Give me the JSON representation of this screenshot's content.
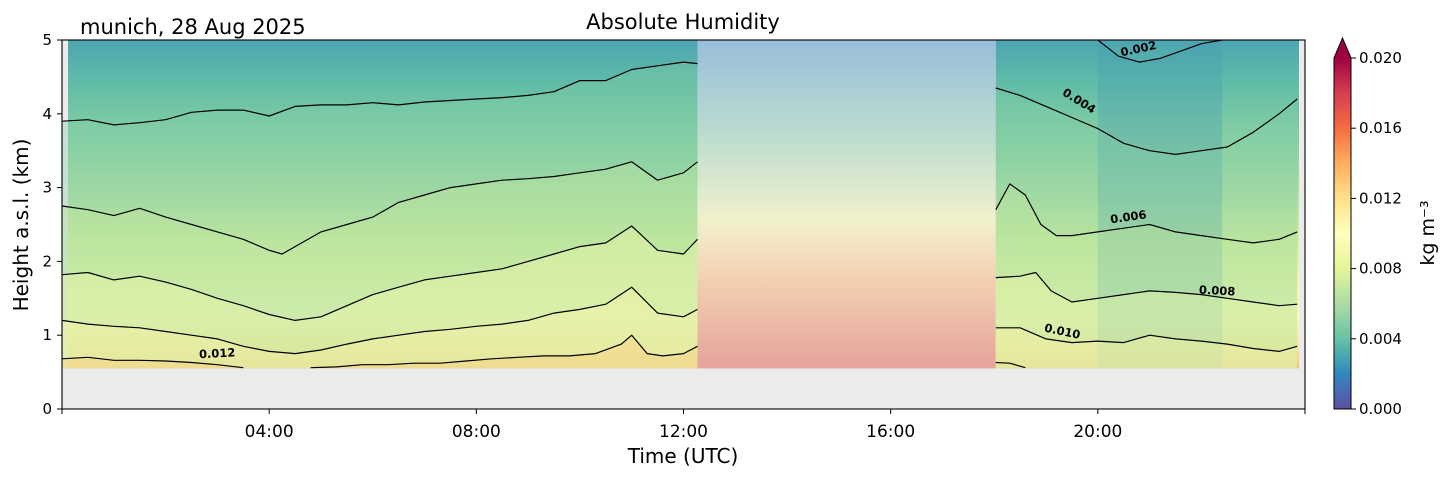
{
  "chart_data": {
    "type": "heatmap",
    "location_date": "munich, 28 Aug 2025",
    "title": "Absolute Humidity",
    "xlabel": "Time (UTC)",
    "ylabel": "Height a.s.l. (km)",
    "xlim_hours": [
      0,
      24
    ],
    "ylim_km": [
      0,
      5
    ],
    "x_ticks": [
      {
        "h": 4,
        "label": "04:00"
      },
      {
        "h": 8,
        "label": "08:00"
      },
      {
        "h": 12,
        "label": "12:00"
      },
      {
        "h": 16,
        "label": "16:00"
      },
      {
        "h": 20,
        "label": "20:00"
      }
    ],
    "y_ticks": [
      {
        "v": 0,
        "label": "0"
      },
      {
        "v": 1,
        "label": "1"
      },
      {
        "v": 2,
        "label": "2"
      },
      {
        "v": 3,
        "label": "3"
      },
      {
        "v": 4,
        "label": "4"
      },
      {
        "v": 5,
        "label": "5"
      }
    ],
    "data_bottom_km": 0.55,
    "masked_interval_hours": [
      12.27,
      18.03
    ],
    "colorbar": {
      "label": "kg m⁻³",
      "vmin": 0.0,
      "vmax": 0.02,
      "extend": "max",
      "colormap": "Spectral_r",
      "ticks": [
        {
          "v": 0.0,
          "label": "0.000"
        },
        {
          "v": 0.004,
          "label": "0.004"
        },
        {
          "v": 0.008,
          "label": "0.008"
        },
        {
          "v": 0.012,
          "label": "0.012"
        },
        {
          "v": 0.016,
          "label": "0.016"
        },
        {
          "v": 0.02,
          "label": "0.020"
        }
      ]
    },
    "contours": [
      {
        "level": 0.002,
        "label": "0.002",
        "x": [
          20.0,
          20.4,
          20.8,
          21.2,
          21.6,
          22.0,
          22.4
        ],
        "y": [
          5.0,
          4.78,
          4.7,
          4.75,
          4.85,
          4.95,
          5.0
        ]
      },
      {
        "level": 0.004,
        "label": "0.004",
        "x": [
          0,
          0.5,
          1.0,
          1.5,
          2.0,
          2.5,
          3.0,
          3.5,
          4.0,
          4.5,
          5.0,
          5.5,
          6.0,
          6.5,
          7.0,
          7.5,
          8.0,
          8.5,
          9.0,
          9.5,
          10.0,
          10.5,
          11.0,
          11.5,
          12.0,
          12.27,
          18.03,
          18.5,
          19.0,
          19.5,
          20.0,
          20.5,
          21.0,
          21.5,
          22.0,
          22.5,
          23.0,
          23.5,
          23.85
        ],
        "y": [
          3.9,
          3.92,
          3.85,
          3.88,
          3.92,
          4.02,
          4.05,
          4.05,
          3.97,
          4.1,
          4.12,
          4.12,
          4.15,
          4.12,
          4.16,
          4.18,
          4.2,
          4.22,
          4.25,
          4.3,
          4.45,
          4.45,
          4.6,
          4.65,
          4.7,
          4.68,
          4.35,
          4.25,
          4.1,
          3.95,
          3.8,
          3.6,
          3.5,
          3.45,
          3.5,
          3.55,
          3.75,
          4.0,
          4.2
        ]
      },
      {
        "level": 0.006,
        "label": "0.006",
        "x": [
          0,
          0.5,
          1.0,
          1.5,
          2.0,
          2.5,
          3.0,
          3.5,
          4.0,
          4.25,
          4.5,
          5.0,
          5.5,
          6.0,
          6.5,
          7.0,
          7.5,
          8.0,
          8.5,
          9.0,
          9.5,
          10.0,
          10.5,
          11.0,
          11.5,
          12.0,
          12.27,
          18.03,
          18.3,
          18.6,
          18.9,
          19.2,
          19.5,
          20.0,
          20.5,
          21.0,
          21.5,
          22.0,
          22.5,
          23.0,
          23.5,
          23.85
        ],
        "y": [
          2.75,
          2.7,
          2.62,
          2.72,
          2.6,
          2.5,
          2.4,
          2.3,
          2.15,
          2.1,
          2.2,
          2.4,
          2.5,
          2.6,
          2.8,
          2.9,
          3.0,
          3.05,
          3.1,
          3.12,
          3.15,
          3.2,
          3.25,
          3.35,
          3.1,
          3.2,
          3.35,
          2.7,
          3.05,
          2.9,
          2.5,
          2.35,
          2.35,
          2.4,
          2.45,
          2.5,
          2.4,
          2.35,
          2.3,
          2.25,
          2.3,
          2.4
        ]
      },
      {
        "level": 0.008,
        "label": "0.008",
        "x": [
          0,
          0.5,
          1.0,
          1.5,
          2.0,
          2.5,
          3.0,
          3.5,
          4.0,
          4.5,
          5.0,
          5.5,
          6.0,
          6.5,
          7.0,
          7.5,
          8.0,
          8.5,
          9.0,
          9.5,
          10.0,
          10.5,
          11.0,
          11.5,
          12.0,
          12.27,
          18.03,
          18.5,
          18.8,
          19.1,
          19.5,
          20.0,
          20.5,
          21.0,
          21.5,
          22.0,
          22.5,
          23.0,
          23.5,
          23.85
        ],
        "y": [
          1.82,
          1.85,
          1.75,
          1.8,
          1.72,
          1.62,
          1.5,
          1.4,
          1.28,
          1.2,
          1.25,
          1.4,
          1.55,
          1.65,
          1.75,
          1.8,
          1.85,
          1.9,
          2.0,
          2.1,
          2.2,
          2.25,
          2.48,
          2.15,
          2.1,
          2.3,
          1.78,
          1.8,
          1.85,
          1.6,
          1.45,
          1.5,
          1.55,
          1.6,
          1.58,
          1.55,
          1.5,
          1.45,
          1.4,
          1.42
        ]
      },
      {
        "level": 0.01,
        "label": "0.010",
        "x": [
          0,
          0.5,
          1.0,
          1.5,
          2.0,
          2.5,
          3.0,
          3.5,
          4.0,
          4.5,
          5.0,
          5.5,
          6.0,
          6.5,
          7.0,
          7.5,
          8.0,
          8.5,
          9.0,
          9.5,
          10.0,
          10.5,
          11.0,
          11.5,
          12.0,
          12.27,
          18.03,
          18.5,
          19.0,
          19.5,
          20.0,
          20.5,
          21.0,
          21.5,
          22.0,
          22.5,
          23.0,
          23.5,
          23.85
        ],
        "y": [
          1.2,
          1.15,
          1.12,
          1.1,
          1.05,
          1.0,
          0.95,
          0.85,
          0.78,
          0.75,
          0.8,
          0.88,
          0.95,
          1.0,
          1.05,
          1.08,
          1.12,
          1.15,
          1.2,
          1.3,
          1.35,
          1.42,
          1.65,
          1.3,
          1.25,
          1.35,
          1.1,
          1.1,
          0.95,
          0.9,
          0.92,
          0.9,
          1.0,
          0.95,
          0.92,
          0.88,
          0.82,
          0.78,
          0.85
        ]
      },
      {
        "level": 0.012,
        "label": "0.012",
        "x": [
          0,
          0.5,
          1.0,
          1.5,
          2.0,
          2.5,
          3.0,
          3.5
        ],
        "y": [
          0.68,
          0.7,
          0.66,
          0.66,
          0.65,
          0.63,
          0.6,
          0.56
        ]
      },
      {
        "level": 0.012,
        "label": "",
        "x": [
          4.8,
          5.3,
          5.8,
          6.3,
          6.8,
          7.3,
          7.8,
          8.3,
          8.8,
          9.3,
          9.8,
          10.3,
          10.8,
          11.0,
          11.3,
          11.6,
          12.0,
          12.27
        ],
        "y": [
          0.56,
          0.57,
          0.6,
          0.6,
          0.62,
          0.62,
          0.65,
          0.68,
          0.7,
          0.72,
          0.72,
          0.75,
          0.88,
          1.0,
          0.75,
          0.72,
          0.75,
          0.85
        ]
      },
      {
        "level": 0.012,
        "label": "",
        "x": [
          18.03,
          18.3,
          18.6
        ],
        "y": [
          0.63,
          0.62,
          0.56
        ]
      }
    ],
    "contour_labels": [
      {
        "text": "0.002",
        "x": 20.8,
        "y": 4.83,
        "angle": -12
      },
      {
        "text": "0.004",
        "x": 19.6,
        "y": 4.13,
        "angle": 32
      },
      {
        "text": "0.006",
        "x": 20.6,
        "y": 2.55,
        "angle": -8
      },
      {
        "text": "0.008",
        "x": 22.3,
        "y": 1.55,
        "angle": 3
      },
      {
        "text": "0.010",
        "x": 19.3,
        "y": 1.0,
        "angle": 12
      },
      {
        "text": "0.012",
        "x": 3.0,
        "y": 0.7,
        "angle": -3
      }
    ],
    "field_profile": {
      "note_heights_km": [
        0.55,
        0.8,
        1.2,
        1.8,
        2.3,
        2.8,
        3.3,
        3.9,
        4.4,
        5.0
      ],
      "values": [
        0.0135,
        0.012,
        0.0102,
        0.0088,
        0.0075,
        0.0064,
        0.0055,
        0.0046,
        0.0038,
        0.003
      ]
    }
  }
}
